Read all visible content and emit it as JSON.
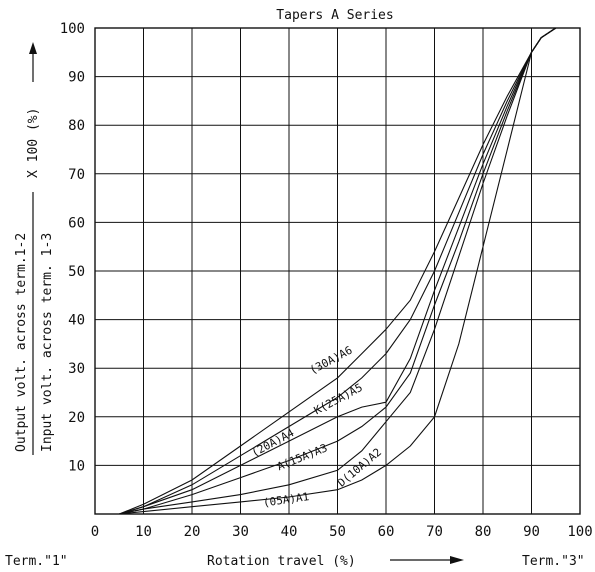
{
  "chart_data": {
    "type": "line",
    "title": "Tapers A Series",
    "xlabel": "Rotation travel (%)",
    "ylabel_numerator": "Output volt. across term.1-2",
    "ylabel_denominator": "Input volt. across term. 1-3",
    "ylabel_suffix": "X 100 (%)",
    "x_term_left": "Term.\"1\"",
    "x_term_right": "Term.\"3\"",
    "xlim": [
      0,
      100
    ],
    "ylim": [
      0,
      100
    ],
    "x_ticks": [
      "0",
      "10",
      "20",
      "30",
      "40",
      "50",
      "60",
      "70",
      "80",
      "90",
      "100"
    ],
    "y_ticks": [
      "10",
      "20",
      "30",
      "40",
      "50",
      "60",
      "70",
      "80",
      "90",
      "100"
    ],
    "grid": true,
    "series": [
      {
        "name": "(05A)A1",
        "points": [
          [
            5,
            0
          ],
          [
            10,
            0.5
          ],
          [
            20,
            1.5
          ],
          [
            30,
            2.5
          ],
          [
            40,
            3.5
          ],
          [
            50,
            5
          ],
          [
            55,
            7
          ],
          [
            60,
            10
          ],
          [
            65,
            14
          ],
          [
            70,
            20
          ],
          [
            75,
            35
          ],
          [
            80,
            55
          ],
          [
            85,
            75
          ],
          [
            90,
            95
          ],
          [
            92,
            98
          ],
          [
            95,
            100
          ]
        ]
      },
      {
        "name": "D(10A)A2",
        "points": [
          [
            5,
            0
          ],
          [
            10,
            1
          ],
          [
            20,
            2.5
          ],
          [
            30,
            4
          ],
          [
            40,
            6
          ],
          [
            50,
            9
          ],
          [
            55,
            13
          ],
          [
            60,
            19
          ],
          [
            65,
            25
          ],
          [
            70,
            38
          ],
          [
            75,
            53
          ],
          [
            80,
            68
          ],
          [
            85,
            82
          ],
          [
            90,
            95
          ],
          [
            92,
            98
          ],
          [
            95,
            100
          ]
        ]
      },
      {
        "name": "A(15A)A3",
        "points": [
          [
            5,
            0
          ],
          [
            10,
            1
          ],
          [
            20,
            4
          ],
          [
            30,
            7.5
          ],
          [
            40,
            11
          ],
          [
            50,
            15
          ],
          [
            55,
            18
          ],
          [
            60,
            22
          ],
          [
            65,
            29
          ],
          [
            70,
            43
          ],
          [
            75,
            56
          ],
          [
            80,
            70
          ],
          [
            85,
            83
          ],
          [
            90,
            95
          ],
          [
            92,
            98
          ],
          [
            95,
            100
          ]
        ]
      },
      {
        "name": "(20A)A4",
        "points": [
          [
            5,
            0
          ],
          [
            10,
            1.5
          ],
          [
            20,
            5
          ],
          [
            30,
            10
          ],
          [
            40,
            15
          ],
          [
            50,
            20
          ],
          [
            55,
            22
          ],
          [
            60,
            23
          ],
          [
            65,
            32
          ],
          [
            70,
            46
          ],
          [
            75,
            59
          ],
          [
            80,
            72
          ],
          [
            85,
            84
          ],
          [
            90,
            95
          ],
          [
            92,
            98
          ],
          [
            95,
            100
          ]
        ]
      },
      {
        "name": "K(25A)A5",
        "points": [
          [
            5,
            0
          ],
          [
            10,
            1.5
          ],
          [
            20,
            6
          ],
          [
            30,
            12
          ],
          [
            40,
            18
          ],
          [
            50,
            24
          ],
          [
            55,
            28
          ],
          [
            60,
            33
          ],
          [
            65,
            40
          ],
          [
            70,
            50
          ],
          [
            75,
            62
          ],
          [
            80,
            74
          ],
          [
            85,
            85
          ],
          [
            90,
            95
          ],
          [
            92,
            98
          ],
          [
            95,
            100
          ]
        ]
      },
      {
        "name": "(30A)A6",
        "points": [
          [
            5,
            0
          ],
          [
            10,
            2
          ],
          [
            20,
            7
          ],
          [
            30,
            14
          ],
          [
            40,
            21
          ],
          [
            50,
            28
          ],
          [
            55,
            33
          ],
          [
            60,
            38
          ],
          [
            65,
            44
          ],
          [
            70,
            54
          ],
          [
            75,
            65
          ],
          [
            80,
            76
          ],
          [
            85,
            86
          ],
          [
            90,
            95
          ],
          [
            92,
            98
          ],
          [
            95,
            100
          ]
        ]
      }
    ],
    "series_label_anchors": [
      {
        "name": "(05A)A1",
        "x": 39.5,
        "y": 2.2,
        "angle": -8
      },
      {
        "name": "D(10A)A2",
        "x": 55,
        "y": 9,
        "angle": -40
      },
      {
        "name": "A(15A)A3",
        "x": 43,
        "y": 11,
        "angle": -22
      },
      {
        "name": "(20A)A4",
        "x": 37,
        "y": 14,
        "angle": -28
      },
      {
        "name": "K(25A)A5",
        "x": 50.5,
        "y": 23,
        "angle": -28
      },
      {
        "name": "(30A)A6",
        "x": 49,
        "y": 31,
        "angle": -28
      }
    ]
  }
}
